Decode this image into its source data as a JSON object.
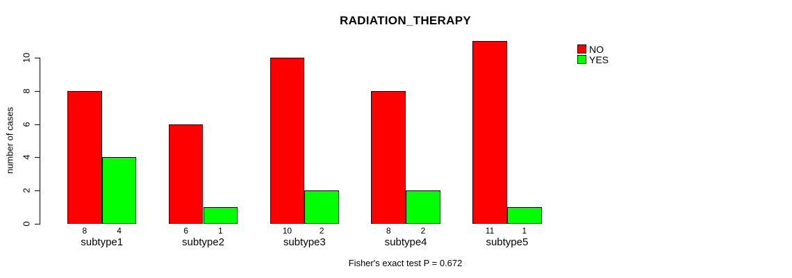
{
  "chart_data": {
    "type": "bar",
    "title": "RADIATION_THERAPY",
    "ylabel": "number of cases",
    "xlabel": "",
    "categories": [
      "subtype1",
      "subtype2",
      "subtype3",
      "subtype4",
      "subtype5"
    ],
    "series": [
      {
        "name": "NO",
        "color": "#FF0000",
        "values": [
          8,
          6,
          10,
          8,
          11
        ]
      },
      {
        "name": "YES",
        "color": "#00FF00",
        "values": [
          4,
          1,
          2,
          2,
          1
        ]
      }
    ],
    "bar_value_labels_shown": true,
    "yticks": [
      0,
      2,
      4,
      6,
      8,
      10
    ],
    "ylim": [
      0,
      11
    ],
    "grid": false,
    "legend_position": "top-right",
    "annotation": "Fisher's exact test P = 0.672",
    "colors": {
      "bar_border": "#000000",
      "axis": "#000000",
      "text": "#000000",
      "background": "#FFFFFF"
    }
  }
}
